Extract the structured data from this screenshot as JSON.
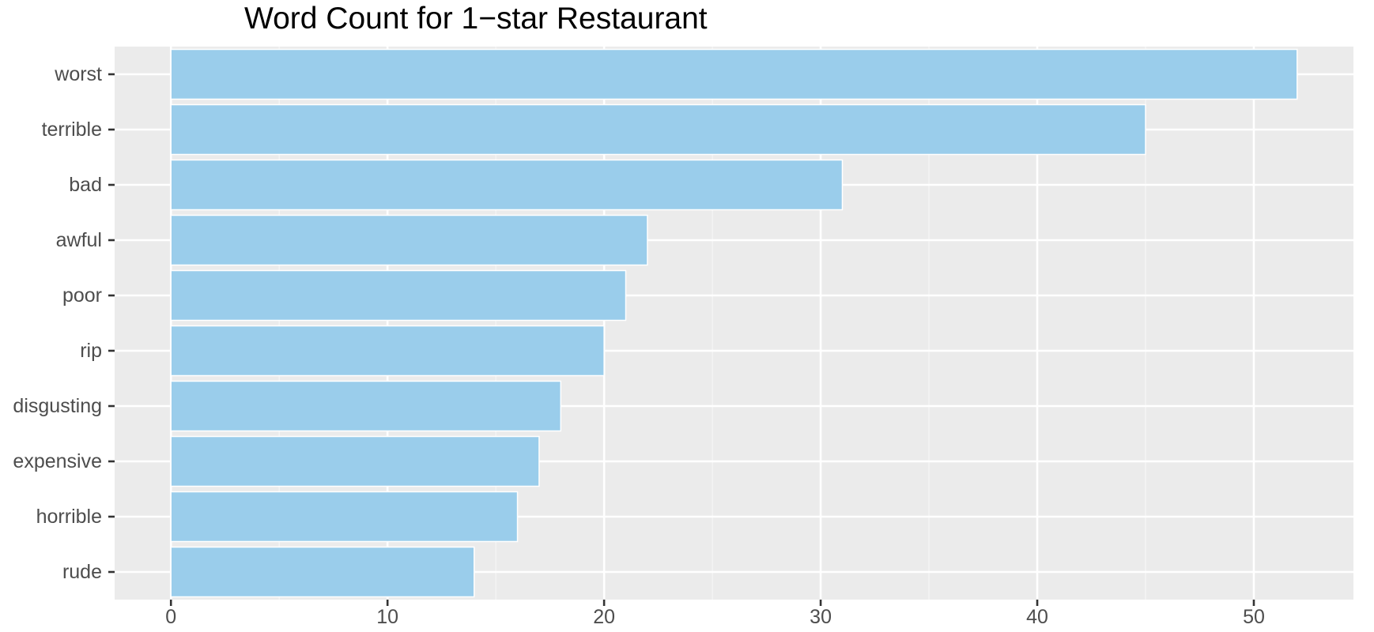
{
  "chart_data": {
    "type": "bar",
    "orientation": "horizontal",
    "title": "Word Count for 1−star Restaurant",
    "xlabel": "",
    "ylabel": "",
    "categories": [
      "worst",
      "terrible",
      "bad",
      "awful",
      "poor",
      "rip",
      "disgusting",
      "expensive",
      "horrible",
      "rude"
    ],
    "values": [
      52,
      45,
      31,
      22,
      21,
      20,
      18,
      17,
      16,
      14
    ],
    "xlim": [
      -2.6,
      54.6
    ],
    "x_ticks": [
      0,
      10,
      20,
      30,
      40,
      50
    ],
    "grid": true,
    "legend": "none",
    "colors": {
      "bar_fill": "#9ACDEB",
      "bar_stroke": "#FFFFFF",
      "panel_background": "#EBEBEB",
      "grid_major": "#FFFFFF",
      "grid_minor": "#F5F5F5",
      "tick_text": "#4D4D4D",
      "tick_mark": "#333333",
      "title": "#000000"
    }
  }
}
